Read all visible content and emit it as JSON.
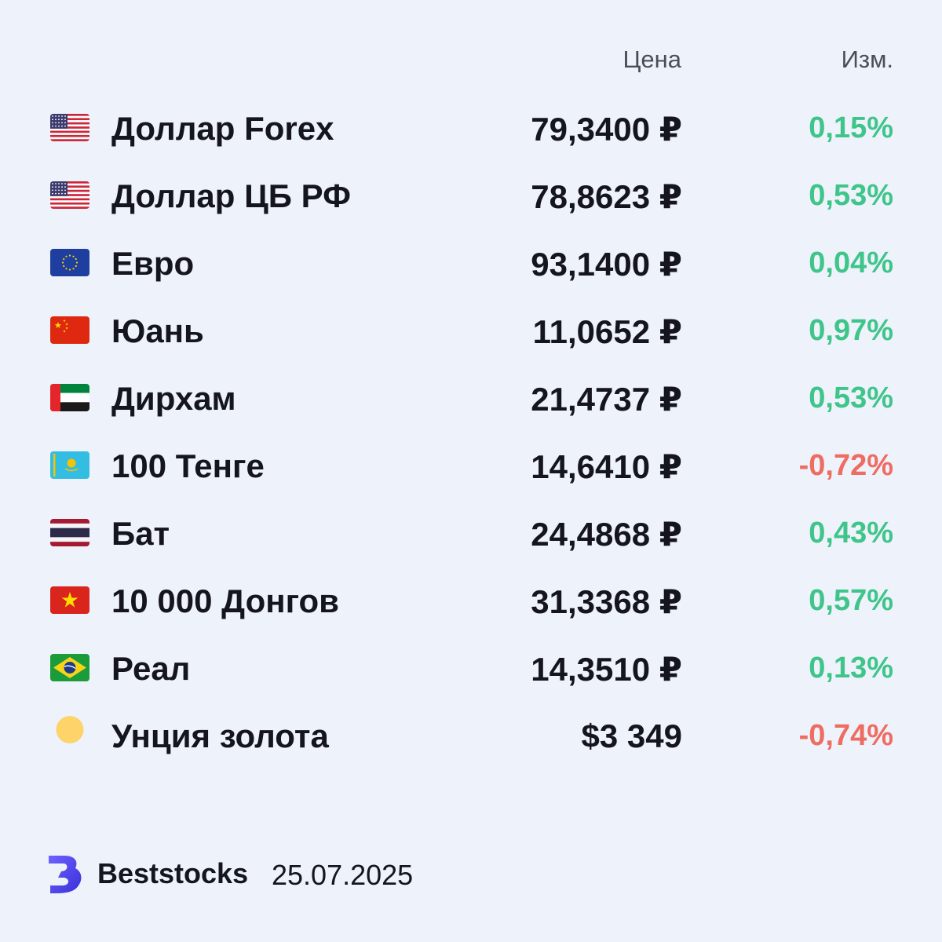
{
  "header": {
    "price_label": "Цена",
    "change_label": "Изм."
  },
  "rows": [
    {
      "flag": "us-flag-icon",
      "name": "Доллар Forex",
      "price": "79,3400 ₽",
      "change": "0,15%",
      "trend": "up"
    },
    {
      "flag": "us-flag-icon",
      "name": "Доллар ЦБ РФ",
      "price": "78,8623 ₽",
      "change": "0,53%",
      "trend": "up"
    },
    {
      "flag": "eu-flag-icon",
      "name": "Евро",
      "price": "93,1400 ₽",
      "change": "0,04%",
      "trend": "up"
    },
    {
      "flag": "cn-flag-icon",
      "name": "Юань",
      "price": "11,0652 ₽",
      "change": "0,97%",
      "trend": "up"
    },
    {
      "flag": "ae-flag-icon",
      "name": "Дирхам",
      "price": "21,4737 ₽",
      "change": "0,53%",
      "trend": "up"
    },
    {
      "flag": "kz-flag-icon",
      "name": "100 Тенге",
      "price": "14,6410 ₽",
      "change": "-0,72%",
      "trend": "down"
    },
    {
      "flag": "th-flag-icon",
      "name": "Бат",
      "price": "24,4868 ₽",
      "change": "0,43%",
      "trend": "up"
    },
    {
      "flag": "vn-flag-icon",
      "name": "10 000 Донгов",
      "price": "31,3368 ₽",
      "change": "0,57%",
      "trend": "up"
    },
    {
      "flag": "br-flag-icon",
      "name": "Реал",
      "price": "14,3510 ₽",
      "change": "0,13%",
      "trend": "up"
    },
    {
      "flag": "gold-coin-icon",
      "name": "Унция золота",
      "price": "$3 349",
      "change": "-0,74%",
      "trend": "down"
    }
  ],
  "colors": {
    "up": "#3fc58a",
    "down": "#ef6c62",
    "background": "#eef2fb",
    "brand": "#4f46e5"
  },
  "footer": {
    "logo_icon": "beststocks-logo-icon",
    "brand": "Beststocks",
    "date": "25.07.2025"
  }
}
